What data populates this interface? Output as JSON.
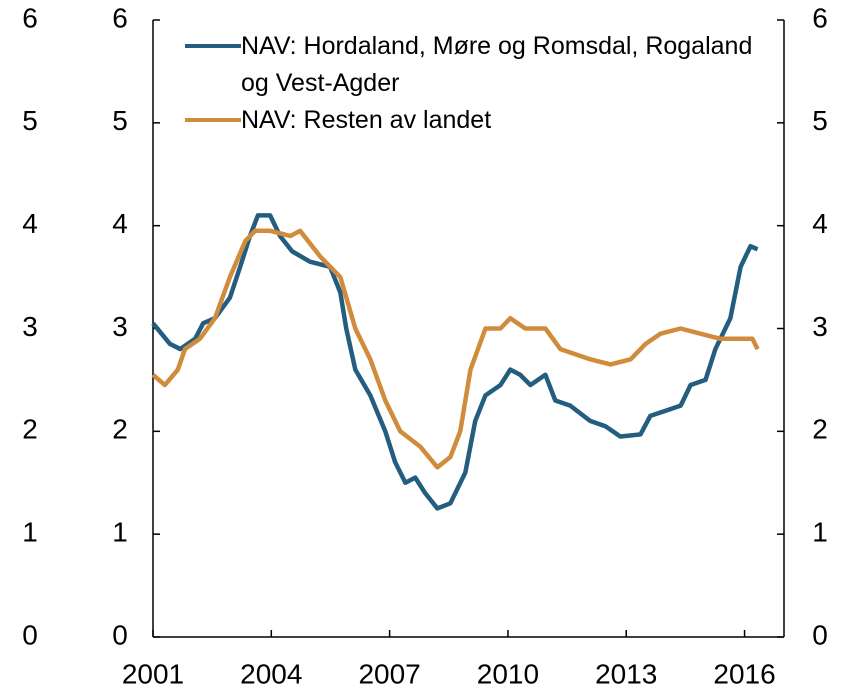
{
  "chart_data": {
    "type": "line",
    "xlim": [
      2001,
      2017
    ],
    "xticks": [
      2001,
      2004,
      2007,
      2010,
      2013,
      2016
    ],
    "ylim": [
      0,
      6
    ],
    "yticks": [
      0,
      1,
      2,
      3,
      4,
      5,
      6
    ],
    "y2lim": [
      0,
      6
    ],
    "y2ticks": [
      0,
      1,
      2,
      3,
      4,
      5,
      6
    ],
    "legend": "top-left",
    "series": [
      {
        "name": "NAV: Hordaland, Møre og Romsdal, Rogaland og Vest-Agder",
        "color": "#235d7f",
        "x": [
          2001.0,
          2001.43,
          2001.69,
          2002.07,
          2002.27,
          2002.57,
          2002.95,
          2003.21,
          2003.46,
          2003.66,
          2003.97,
          2004.22,
          2004.53,
          2004.98,
          2005.49,
          2005.75,
          2005.9,
          2006.13,
          2006.51,
          2006.89,
          2007.14,
          2007.4,
          2007.65,
          2007.9,
          2008.21,
          2008.54,
          2008.92,
          2009.17,
          2009.43,
          2009.81,
          2010.06,
          2010.31,
          2010.57,
          2010.95,
          2011.2,
          2011.58,
          2012.09,
          2012.47,
          2012.85,
          2013.36,
          2013.61,
          2014.0,
          2014.38,
          2014.63,
          2015.01,
          2015.26,
          2015.64,
          2015.9,
          2016.15,
          2016.33
        ],
        "values": [
          3.05,
          2.85,
          2.8,
          2.9,
          3.05,
          3.1,
          3.3,
          3.6,
          3.9,
          4.1,
          4.1,
          3.9,
          3.75,
          3.65,
          3.6,
          3.35,
          3.0,
          2.6,
          2.35,
          2.0,
          1.7,
          1.5,
          1.55,
          1.4,
          1.25,
          1.3,
          1.6,
          2.1,
          2.35,
          2.45,
          2.6,
          2.55,
          2.45,
          2.55,
          2.3,
          2.25,
          2.1,
          2.05,
          1.95,
          1.97,
          2.15,
          2.2,
          2.25,
          2.45,
          2.5,
          2.8,
          3.1,
          3.6,
          3.8,
          3.77
        ]
      },
      {
        "name": "NAV: Resten av landet",
        "color": "#d08c3c",
        "x": [
          2001.0,
          2001.3,
          2001.63,
          2001.81,
          2002.19,
          2002.57,
          2002.95,
          2003.34,
          2003.59,
          2003.97,
          2004.48,
          2004.73,
          2005.24,
          2005.75,
          2006.13,
          2006.51,
          2006.89,
          2007.27,
          2007.78,
          2008.21,
          2008.54,
          2008.79,
          2009.05,
          2009.43,
          2009.81,
          2010.06,
          2010.44,
          2010.95,
          2011.33,
          2011.71,
          2012.09,
          2012.6,
          2013.11,
          2013.49,
          2013.87,
          2014.38,
          2014.88,
          2015.39,
          2015.9,
          2016.2,
          2016.33
        ],
        "values": [
          2.55,
          2.45,
          2.6,
          2.8,
          2.9,
          3.1,
          3.5,
          3.85,
          3.95,
          3.95,
          3.9,
          3.95,
          3.7,
          3.5,
          3.0,
          2.7,
          2.3,
          2.0,
          1.85,
          1.65,
          1.75,
          2.0,
          2.6,
          3.0,
          3.0,
          3.1,
          3.0,
          3.0,
          2.8,
          2.75,
          2.7,
          2.65,
          2.7,
          2.85,
          2.95,
          3.0,
          2.95,
          2.9,
          2.9,
          2.9,
          2.8
        ]
      }
    ]
  }
}
